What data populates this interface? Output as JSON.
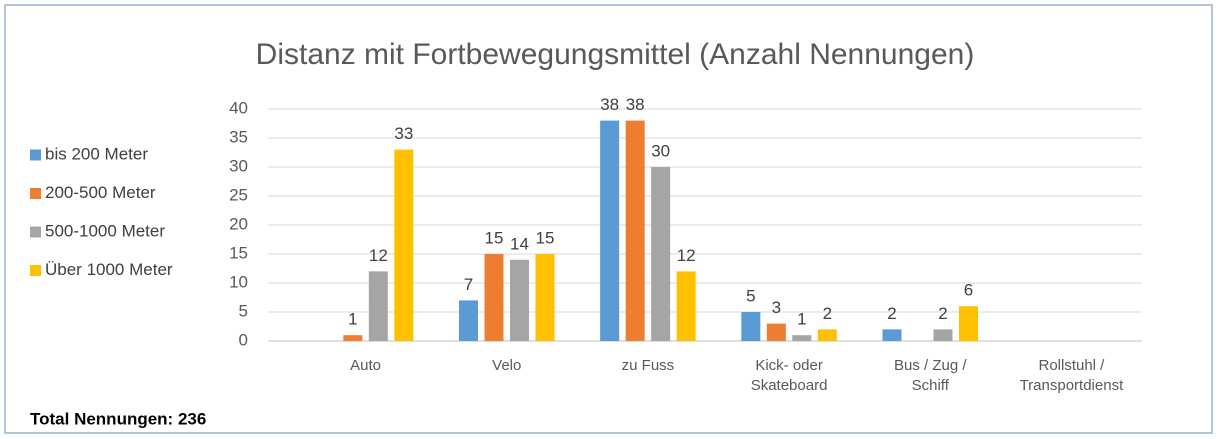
{
  "chart_data": {
    "type": "bar",
    "title": "Distanz mit Fortbewegungsmittel (Anzahl Nennungen)",
    "categories": [
      "Auto",
      "Velo",
      "zu Fuss",
      "Kick- oder\nSkateboard",
      "Bus / Zug /\nSchiff",
      "Rollstuhl /\nTransportdienst"
    ],
    "series": [
      {
        "name": "bis 200 Meter",
        "color": "#5b9bd5",
        "values": [
          null,
          7,
          38,
          5,
          2,
          null
        ]
      },
      {
        "name": "200-500 Meter",
        "color": "#ed7d31",
        "values": [
          1,
          15,
          38,
          3,
          null,
          null
        ]
      },
      {
        "name": "500-1000 Meter",
        "color": "#a5a5a5",
        "values": [
          12,
          14,
          30,
          1,
          2,
          null
        ]
      },
      {
        "name": "Über 1000 Meter",
        "color": "#ffc000",
        "values": [
          33,
          15,
          12,
          2,
          6,
          null
        ]
      }
    ],
    "ylim": [
      0,
      40
    ],
    "yticks": [
      0,
      5,
      10,
      15,
      20,
      25,
      30,
      35,
      40
    ],
    "grid": true,
    "legend": "left"
  },
  "footnote": "Total Nennungen: 236"
}
